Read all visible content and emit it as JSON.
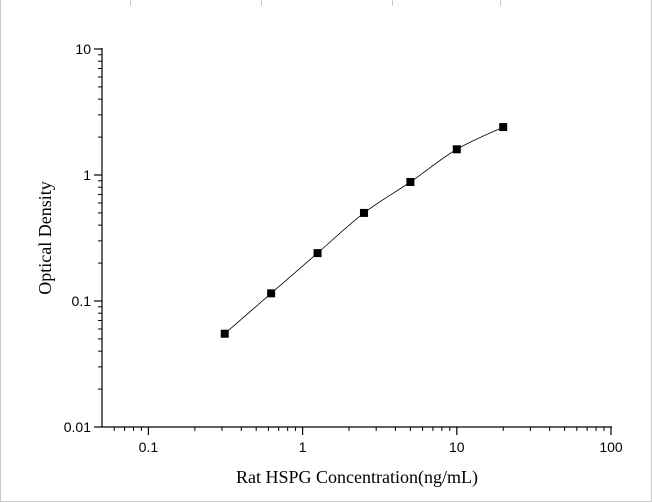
{
  "chart_data": {
    "type": "scatter",
    "xlabel": "Rat HSPG Concentration(ng/mL)",
    "ylabel": "Optical Density",
    "xscale": "log",
    "yscale": "log",
    "xlim": [
      0.05,
      100
    ],
    "ylim": [
      0.01,
      10
    ],
    "xticks": [
      {
        "value": 0.1,
        "label": "0.1"
      },
      {
        "value": 1,
        "label": "1"
      },
      {
        "value": 10,
        "label": "10"
      },
      {
        "value": 100,
        "label": "100"
      }
    ],
    "yticks": [
      {
        "value": 0.01,
        "label": "0.01"
      },
      {
        "value": 0.1,
        "label": "0.1"
      },
      {
        "value": 1,
        "label": "1"
      },
      {
        "value": 10,
        "label": "10"
      }
    ],
    "series": [
      {
        "marker": "square",
        "color": "#000000",
        "x": [
          0.3125,
          0.625,
          1.25,
          2.5,
          5,
          10,
          20
        ],
        "y": [
          0.055,
          0.115,
          0.24,
          0.5,
          0.88,
          1.6,
          2.4
        ]
      }
    ],
    "fit_curve": true,
    "grid": false
  }
}
